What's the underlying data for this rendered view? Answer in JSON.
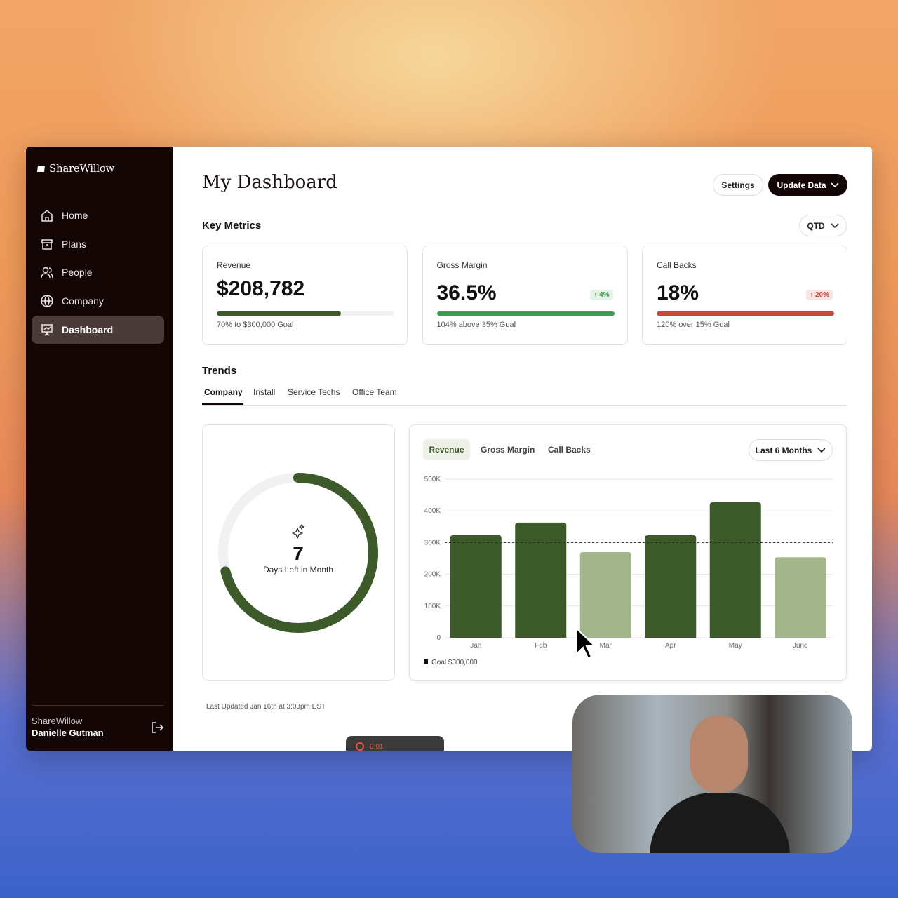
{
  "sidebar": {
    "brand": "ShareWillow",
    "nav": [
      "Home",
      "Plans",
      "People",
      "Company",
      "Dashboard"
    ],
    "account": {
      "company": "ShareWillow",
      "user": "Danielle Gutman"
    }
  },
  "header": {
    "title": "My Dashboard",
    "buttons": [
      "Settings",
      "Update Data"
    ]
  },
  "key_metrics": {
    "title": "Key Metrics",
    "period": "QTD",
    "cards": [
      {
        "label": "Revenue",
        "value": "$208,782",
        "progress": 70,
        "color": "#3d5a2a",
        "note": "70% to $300,000 Goal"
      },
      {
        "label": "Gross Margin",
        "value": "36.5%",
        "badge": "4%",
        "progress": 100,
        "color": "#3f9a52",
        "note": "104% above 35% Goal"
      },
      {
        "label": "Call Backs",
        "value": "18%",
        "badge": "20%",
        "progress": 100,
        "color": "#c9473a",
        "note": "120% over 15% Goal"
      }
    ]
  },
  "trends": {
    "title": "Trends",
    "tabs": [
      "Company",
      "Install",
      "Service Techs",
      "Office Team"
    ]
  },
  "days_left": {
    "value": "7",
    "label": "Days Left in Month",
    "progress": 71
  },
  "chart_data": {
    "type": "bar",
    "tabs": [
      "Revenue",
      "Gross Margin",
      "Call Backs"
    ],
    "range": "Last 6 Months",
    "categories": [
      "Jan",
      "Feb",
      "Mar",
      "Apr",
      "May",
      "June"
    ],
    "values": [
      323000,
      363000,
      270000,
      323000,
      427000,
      254000
    ],
    "colors": [
      "#3d5a2a",
      "#3d5a2a",
      "#a3b58a",
      "#3d5a2a",
      "#3d5a2a",
      "#a3b58a"
    ],
    "ylim": [
      0,
      500000
    ],
    "yticks": [
      0,
      {
        "value": 100000,
        "label": "100K"
      },
      {
        "value": 200000,
        "label": "200K"
      },
      {
        "value": 300000,
        "label": "300K"
      },
      {
        "value": 400000,
        "label": "400K"
      },
      {
        "value": 500000,
        "label": "500K"
      }
    ],
    "grid": true,
    "goal": {
      "value": 300000,
      "label": "Goal $300,000"
    }
  },
  "footer": {
    "updated": "Last Updated Jan 16th at 3:03pm EST"
  },
  "recorder": {
    "time": "0:01"
  }
}
